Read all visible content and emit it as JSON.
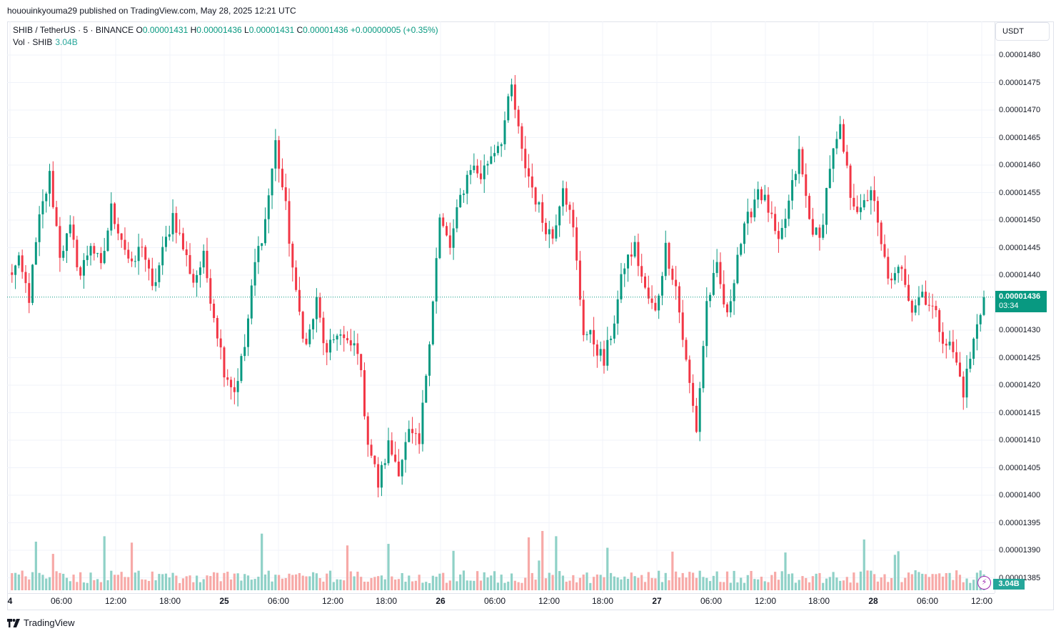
{
  "published": "hououinkyouma29 published on TradingView.com, May 28, 2025 12:21 UTC",
  "legend": {
    "symbol": "SHIB / TetherUS · 5 · BINANCE",
    "o_label": "O",
    "o_value": "0.00001431",
    "h_label": "H",
    "h_value": "0.00001436",
    "l_label": "L",
    "l_value": "0.00001431",
    "c_label": "C",
    "c_value": "0.00001436",
    "change": "+0.00000005 (+0.35%)",
    "vol_label": "Vol · SHIB",
    "vol_value": "3.04B"
  },
  "currency_button": "USDT",
  "price_axis_labels": [
    "0.00001480",
    "0.00001475",
    "0.00001470",
    "0.00001465",
    "0.00001460",
    "0.00001455",
    "0.00001450",
    "0.00001445",
    "0.00001440",
    "0.00001430",
    "0.00001425",
    "0.00001420",
    "0.00001415",
    "0.00001410",
    "0.00001405",
    "0.00001400",
    "0.00001395",
    "0.00001390",
    "0.00001385"
  ],
  "last_price": {
    "price": "0.00001436",
    "countdown": "03:34"
  },
  "volume_badge": "3.04B",
  "time_axis_labels": [
    "4",
    "06:00",
    "12:00",
    "18:00",
    "25",
    "06:00",
    "12:00",
    "18:00",
    "26",
    "06:00",
    "12:00",
    "18:00",
    "27",
    "06:00",
    "12:00",
    "18:00",
    "28",
    "06:00",
    "12:00"
  ],
  "brand": "TradingView",
  "colors": {
    "up": "#089981",
    "down": "#f23645",
    "vol_up": "#8fd1c7",
    "vol_down": "#f7a9a7",
    "grid": "#f0f3fa"
  },
  "chart_data": {
    "type": "candlestick",
    "title": "SHIB / TetherUS · 5 · BINANCE",
    "ylim": [
      1.383e-05,
      1.483e-05
    ],
    "price_ticks": [
      1.48e-05,
      1.475e-05,
      1.47e-05,
      1.465e-05,
      1.46e-05,
      1.455e-05,
      1.45e-05,
      1.445e-05,
      1.44e-05,
      1.43e-05,
      1.425e-05,
      1.42e-05,
      1.415e-05,
      1.41e-05,
      1.405e-05,
      1.4e-05,
      1.395e-05,
      1.39e-05,
      1.385e-05
    ],
    "last_close": 1.436e-05,
    "price_path": [
      [
        0,
        1440
      ],
      [
        3,
        1442
      ],
      [
        6,
        1436
      ],
      [
        9,
        1450
      ],
      [
        12,
        1458
      ],
      [
        15,
        1444
      ],
      [
        18,
        1448
      ],
      [
        21,
        1440
      ],
      [
        24,
        1446
      ],
      [
        27,
        1441
      ],
      [
        30,
        1452
      ],
      [
        33,
        1447
      ],
      [
        36,
        1441
      ],
      [
        39,
        1446
      ],
      [
        42,
        1437
      ],
      [
        45,
        1444
      ],
      [
        48,
        1451
      ],
      [
        51,
        1445
      ],
      [
        54,
        1439
      ],
      [
        57,
        1443
      ],
      [
        60,
        1433
      ],
      [
        63,
        1423
      ],
      [
        66,
        1419
      ],
      [
        69,
        1427
      ],
      [
        72,
        1442
      ],
      [
        75,
        1450
      ],
      [
        78,
        1464
      ],
      [
        81,
        1452
      ],
      [
        84,
        1436
      ],
      [
        87,
        1427
      ],
      [
        90,
        1435
      ],
      [
        93,
        1425
      ],
      [
        96,
        1430
      ],
      [
        99,
        1427
      ],
      [
        102,
        1427
      ],
      [
        105,
        1410
      ],
      [
        108,
        1402
      ],
      [
        111,
        1409
      ],
      [
        114,
        1405
      ],
      [
        117,
        1411
      ],
      [
        120,
        1409
      ],
      [
        123,
        1429
      ],
      [
        126,
        1450
      ],
      [
        129,
        1445
      ],
      [
        132,
        1454
      ],
      [
        135,
        1460
      ],
      [
        138,
        1458
      ],
      [
        141,
        1462
      ],
      [
        144,
        1465
      ],
      [
        147,
        1474
      ],
      [
        150,
        1462
      ],
      [
        153,
        1456
      ],
      [
        156,
        1450
      ],
      [
        159,
        1447
      ],
      [
        162,
        1457
      ],
      [
        165,
        1448
      ],
      [
        168,
        1430
      ],
      [
        171,
        1428
      ],
      [
        174,
        1424
      ],
      [
        177,
        1432
      ],
      [
        180,
        1442
      ],
      [
        183,
        1445
      ],
      [
        186,
        1437
      ],
      [
        189,
        1433
      ],
      [
        192,
        1445
      ],
      [
        195,
        1438
      ],
      [
        198,
        1424
      ],
      [
        201,
        1412
      ],
      [
        204,
        1435
      ],
      [
        207,
        1441
      ],
      [
        210,
        1432
      ],
      [
        213,
        1444
      ],
      [
        216,
        1450
      ],
      [
        219,
        1456
      ],
      [
        222,
        1452
      ],
      [
        225,
        1445
      ],
      [
        228,
        1453
      ],
      [
        231,
        1462
      ],
      [
        234,
        1450
      ],
      [
        237,
        1446
      ],
      [
        240,
        1460
      ],
      [
        243,
        1466
      ],
      [
        246,
        1455
      ],
      [
        249,
        1451
      ],
      [
        252,
        1456
      ],
      [
        255,
        1445
      ],
      [
        258,
        1438
      ],
      [
        261,
        1442
      ],
      [
        264,
        1434
      ],
      [
        267,
        1437
      ],
      [
        270,
        1434
      ],
      [
        273,
        1429
      ],
      [
        276,
        1426
      ],
      [
        279,
        1419
      ],
      [
        282,
        1428
      ],
      [
        285,
        1436
      ]
    ]
  }
}
